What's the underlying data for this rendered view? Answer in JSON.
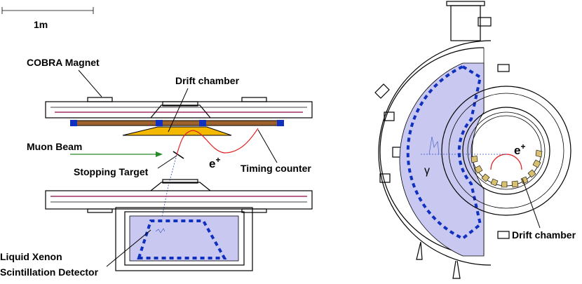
{
  "scale_bar": {
    "label": "1m"
  },
  "side_view": {
    "labels": {
      "magnet": "COBRA Magnet",
      "drift_chamber": "Drift chamber",
      "muon_beam": "Muon Beam",
      "positron": {
        "base": "e",
        "sup": "+"
      },
      "stopping_target": "Stopping Target",
      "timing_counter": "Timing counter",
      "lxe_line1": "Liquid Xenon",
      "lxe_line2": "Scintillation Detector"
    }
  },
  "end_view": {
    "labels": {
      "gamma": "γ",
      "positron": {
        "base": "e",
        "sup": "+"
      },
      "drift_chamber": "Drift chamber"
    }
  }
}
